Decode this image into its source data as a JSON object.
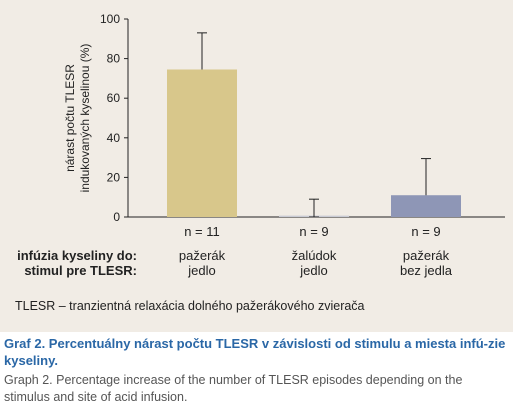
{
  "chart_data": {
    "type": "bar",
    "ylabel_lines": [
      "nárast počtu TLESR",
      "indukovaných kyselinou (%)"
    ],
    "ylim": [
      0,
      100
    ],
    "yticks": [
      0,
      20,
      40,
      60,
      80,
      100
    ],
    "grid": false,
    "categories": [
      "pažerák jedlo",
      "žalúdok jedlo",
      "pažerák bez jedla"
    ],
    "values": [
      74.5,
      0.7,
      11
    ],
    "error_upper": [
      93,
      9,
      29.5
    ],
    "error_lower": [
      74.5,
      0,
      11
    ],
    "bar_colors": [
      "#d8c78b",
      "#c9cbd4",
      "#8e96b6"
    ],
    "n_labels": [
      "n = 11",
      "n = 9",
      "n = 9"
    ],
    "category_line1": [
      "pažerák",
      "žalúdok",
      "pažerák"
    ],
    "category_line2": [
      "jedlo",
      "jedlo",
      "bez jedla"
    ]
  },
  "row_labels": {
    "infusion": "infúzia kyseliny do:",
    "stimulus": "stimul pre TLESR:"
  },
  "footnote": "TLESR – tranzientná relaxácia dolného pažerákového zvierača",
  "caption_sk": "Graf 2. Percentuálny nárast počtu TLESR v závislosti od stimulu a miesta infú-zie kyseliny.",
  "caption_en": "Graph 2. Percentage increase of the number of TLESR episodes depending on the stimulus and site of acid infusion.",
  "colors": {
    "panel_bg": "#f1ece5",
    "caption_sk": "#2a67a6",
    "caption_en": "#555555"
  }
}
